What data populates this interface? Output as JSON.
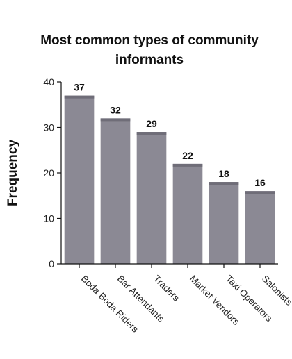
{
  "chart_data": {
    "type": "bar",
    "title": "Most common types of community informants",
    "title_lines": [
      "Most common types of community",
      "informants"
    ],
    "xlabel": "",
    "ylabel": "Frequency",
    "categories": [
      "Boda Boda Riders",
      "Bar Attendants",
      "Traders",
      "Market Vendors",
      "Taxi Operators",
      "Salonists"
    ],
    "values": [
      37,
      32,
      29,
      22,
      18,
      16
    ],
    "ylim": [
      0,
      40
    ],
    "yticks": [
      0,
      10,
      20,
      30,
      40
    ],
    "grid": false,
    "legend": "none",
    "bar_color": "#8b8994",
    "bar_top_color": "#6f6d78"
  }
}
